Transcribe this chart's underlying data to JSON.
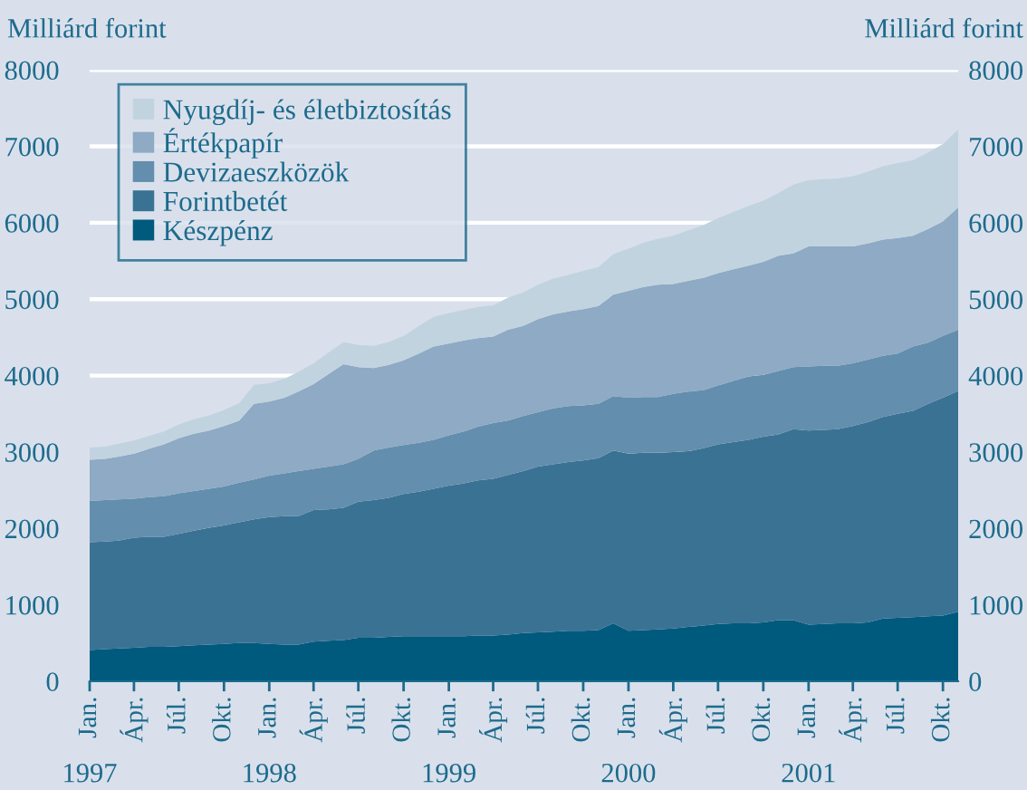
{
  "chart_data": {
    "type": "area",
    "stacked": true,
    "ylabel": "Milliárd forint",
    "y2label": "Milliárd forint",
    "x": [
      "1997-01",
      "1997-02",
      "1997-03",
      "1997-04",
      "1997-05",
      "1997-06",
      "1997-07",
      "1997-08",
      "1997-09",
      "1997-10",
      "1997-11",
      "1997-12",
      "1998-01",
      "1998-02",
      "1998-03",
      "1998-04",
      "1998-05",
      "1998-06",
      "1998-07",
      "1998-08",
      "1998-09",
      "1998-10",
      "1998-11",
      "1998-12",
      "1999-01",
      "1999-02",
      "1999-03",
      "1999-04",
      "1999-05",
      "1999-06",
      "1999-07",
      "1999-08",
      "1999-09",
      "1999-10",
      "1999-11",
      "1999-12",
      "2000-01",
      "2000-02",
      "2000-03",
      "2000-04",
      "2000-05",
      "2000-06",
      "2000-07",
      "2000-08",
      "2000-09",
      "2000-10",
      "2000-11",
      "2000-12",
      "2001-01",
      "2001-02",
      "2001-03",
      "2001-04",
      "2001-05",
      "2001-06",
      "2001-07",
      "2001-08",
      "2001-09",
      "2001-10",
      "2001-11"
    ],
    "series": [
      {
        "name": "Készpénz",
        "color": "#005a7d",
        "values": [
          410,
          420,
          430,
          440,
          450,
          450,
          460,
          470,
          480,
          490,
          500,
          500,
          490,
          480,
          480,
          520,
          530,
          540,
          570,
          570,
          580,
          590,
          590,
          590,
          590,
          590,
          600,
          600,
          610,
          630,
          640,
          650,
          660,
          660,
          670,
          760,
          660,
          670,
          680,
          690,
          710,
          730,
          750,
          760,
          760,
          770,
          800,
          800,
          740,
          750,
          760,
          760,
          770,
          820,
          830,
          840,
          850,
          860,
          910
        ]
      },
      {
        "name": "Forintbetét",
        "color": "#3a7294",
        "values": [
          1410,
          1410,
          1410,
          1440,
          1440,
          1440,
          1470,
          1500,
          1530,
          1550,
          1580,
          1620,
          1660,
          1680,
          1680,
          1720,
          1720,
          1730,
          1780,
          1800,
          1820,
          1860,
          1890,
          1930,
          1970,
          2000,
          2030,
          2050,
          2090,
          2120,
          2170,
          2190,
          2210,
          2230,
          2250,
          2260,
          2320,
          2320,
          2310,
          2310,
          2300,
          2320,
          2350,
          2370,
          2400,
          2430,
          2430,
          2500,
          2540,
          2540,
          2540,
          2580,
          2620,
          2640,
          2670,
          2700,
          2780,
          2850,
          2890
        ]
      },
      {
        "name": "Devizaeszközök",
        "color": "#638ead",
        "values": [
          540,
          540,
          540,
          510,
          520,
          530,
          530,
          520,
          510,
          510,
          520,
          520,
          540,
          560,
          590,
          540,
          560,
          570,
          560,
          650,
          660,
          640,
          640,
          640,
          660,
          680,
          700,
          730,
          710,
          720,
          710,
          730,
          730,
          720,
          710,
          710,
          730,
          730,
          730,
          760,
          780,
          760,
          770,
          800,
          830,
          810,
          830,
          810,
          840,
          840,
          830,
          820,
          820,
          800,
          790,
          840,
          800,
          810,
          800
        ]
      },
      {
        "name": "Értékpapír",
        "color": "#8eaac4",
        "values": [
          540,
          540,
          560,
          590,
          630,
          680,
          720,
          750,
          760,
          790,
          810,
          990,
          970,
          990,
          1040,
          1110,
          1210,
          1310,
          1200,
          1080,
          1080,
          1110,
          1170,
          1220,
          1200,
          1190,
          1160,
          1130,
          1190,
          1180,
          1220,
          1230,
          1240,
          1260,
          1280,
          1330,
          1400,
          1440,
          1470,
          1440,
          1450,
          1470,
          1470,
          1460,
          1450,
          1480,
          1510,
          1490,
          1570,
          1560,
          1560,
          1530,
          1520,
          1520,
          1510,
          1450,
          1490,
          1500,
          1600
        ]
      },
      {
        "name": "Nyugdíj- és életbiztosítás",
        "color": "#c2d3e0",
        "values": [
          160,
          160,
          170,
          170,
          170,
          170,
          180,
          190,
          200,
          210,
          230,
          250,
          240,
          250,
          260,
          270,
          280,
          290,
          290,
          290,
          300,
          320,
          360,
          390,
          400,
          400,
          410,
          410,
          420,
          440,
          450,
          470,
          480,
          500,
          510,
          530,
          550,
          580,
          600,
          630,
          660,
          690,
          720,
          750,
          780,
          800,
          820,
          900,
          870,
          880,
          890,
          920,
          940,
          960,
          980,
          990,
          1000,
          1010,
          1020
        ]
      }
    ],
    "xlim": [
      "1997-01",
      "2001-11"
    ],
    "xticks": [
      {
        "value": "1997-01",
        "label": "Jan."
      },
      {
        "value": "1997-04",
        "label": "Ápr."
      },
      {
        "value": "1997-07",
        "label": "Júl."
      },
      {
        "value": "1997-10",
        "label": "Okt."
      },
      {
        "value": "1998-01",
        "label": "Jan."
      },
      {
        "value": "1998-04",
        "label": "Ápr."
      },
      {
        "value": "1998-07",
        "label": "Júl."
      },
      {
        "value": "1998-10",
        "label": "Okt."
      },
      {
        "value": "1999-01",
        "label": "Jan."
      },
      {
        "value": "1999-04",
        "label": "Ápr."
      },
      {
        "value": "1999-07",
        "label": "Júl."
      },
      {
        "value": "1999-10",
        "label": "Okt."
      },
      {
        "value": "2000-01",
        "label": "Jan."
      },
      {
        "value": "2000-04",
        "label": "Ápr."
      },
      {
        "value": "2000-07",
        "label": "Júl."
      },
      {
        "value": "2000-10",
        "label": "Okt."
      },
      {
        "value": "2001-01",
        "label": "Jan."
      },
      {
        "value": "2001-04",
        "label": "Ápr."
      },
      {
        "value": "2001-07",
        "label": "Júl."
      },
      {
        "value": "2001-10",
        "label": "Okt."
      }
    ],
    "x2lim": [
      "1997-01",
      "2001-11"
    ],
    "x2ticks": [
      {
        "value": "1997-01",
        "label": "1997"
      },
      {
        "value": "1998-01",
        "label": "1998"
      },
      {
        "value": "1999-01",
        "label": "1999"
      },
      {
        "value": "2000-01",
        "label": "2000"
      },
      {
        "value": "2001-01",
        "label": "2001"
      }
    ],
    "ylim": [
      0,
      8000
    ],
    "yticks": [
      0,
      1000,
      2000,
      3000,
      4000,
      5000,
      6000,
      7000,
      8000
    ],
    "y2lim": [
      0,
      8000
    ],
    "y2ticks": [
      0,
      1000,
      2000,
      3000,
      4000,
      5000,
      6000,
      7000,
      8000
    ],
    "grid": "y",
    "legend": "top left"
  }
}
